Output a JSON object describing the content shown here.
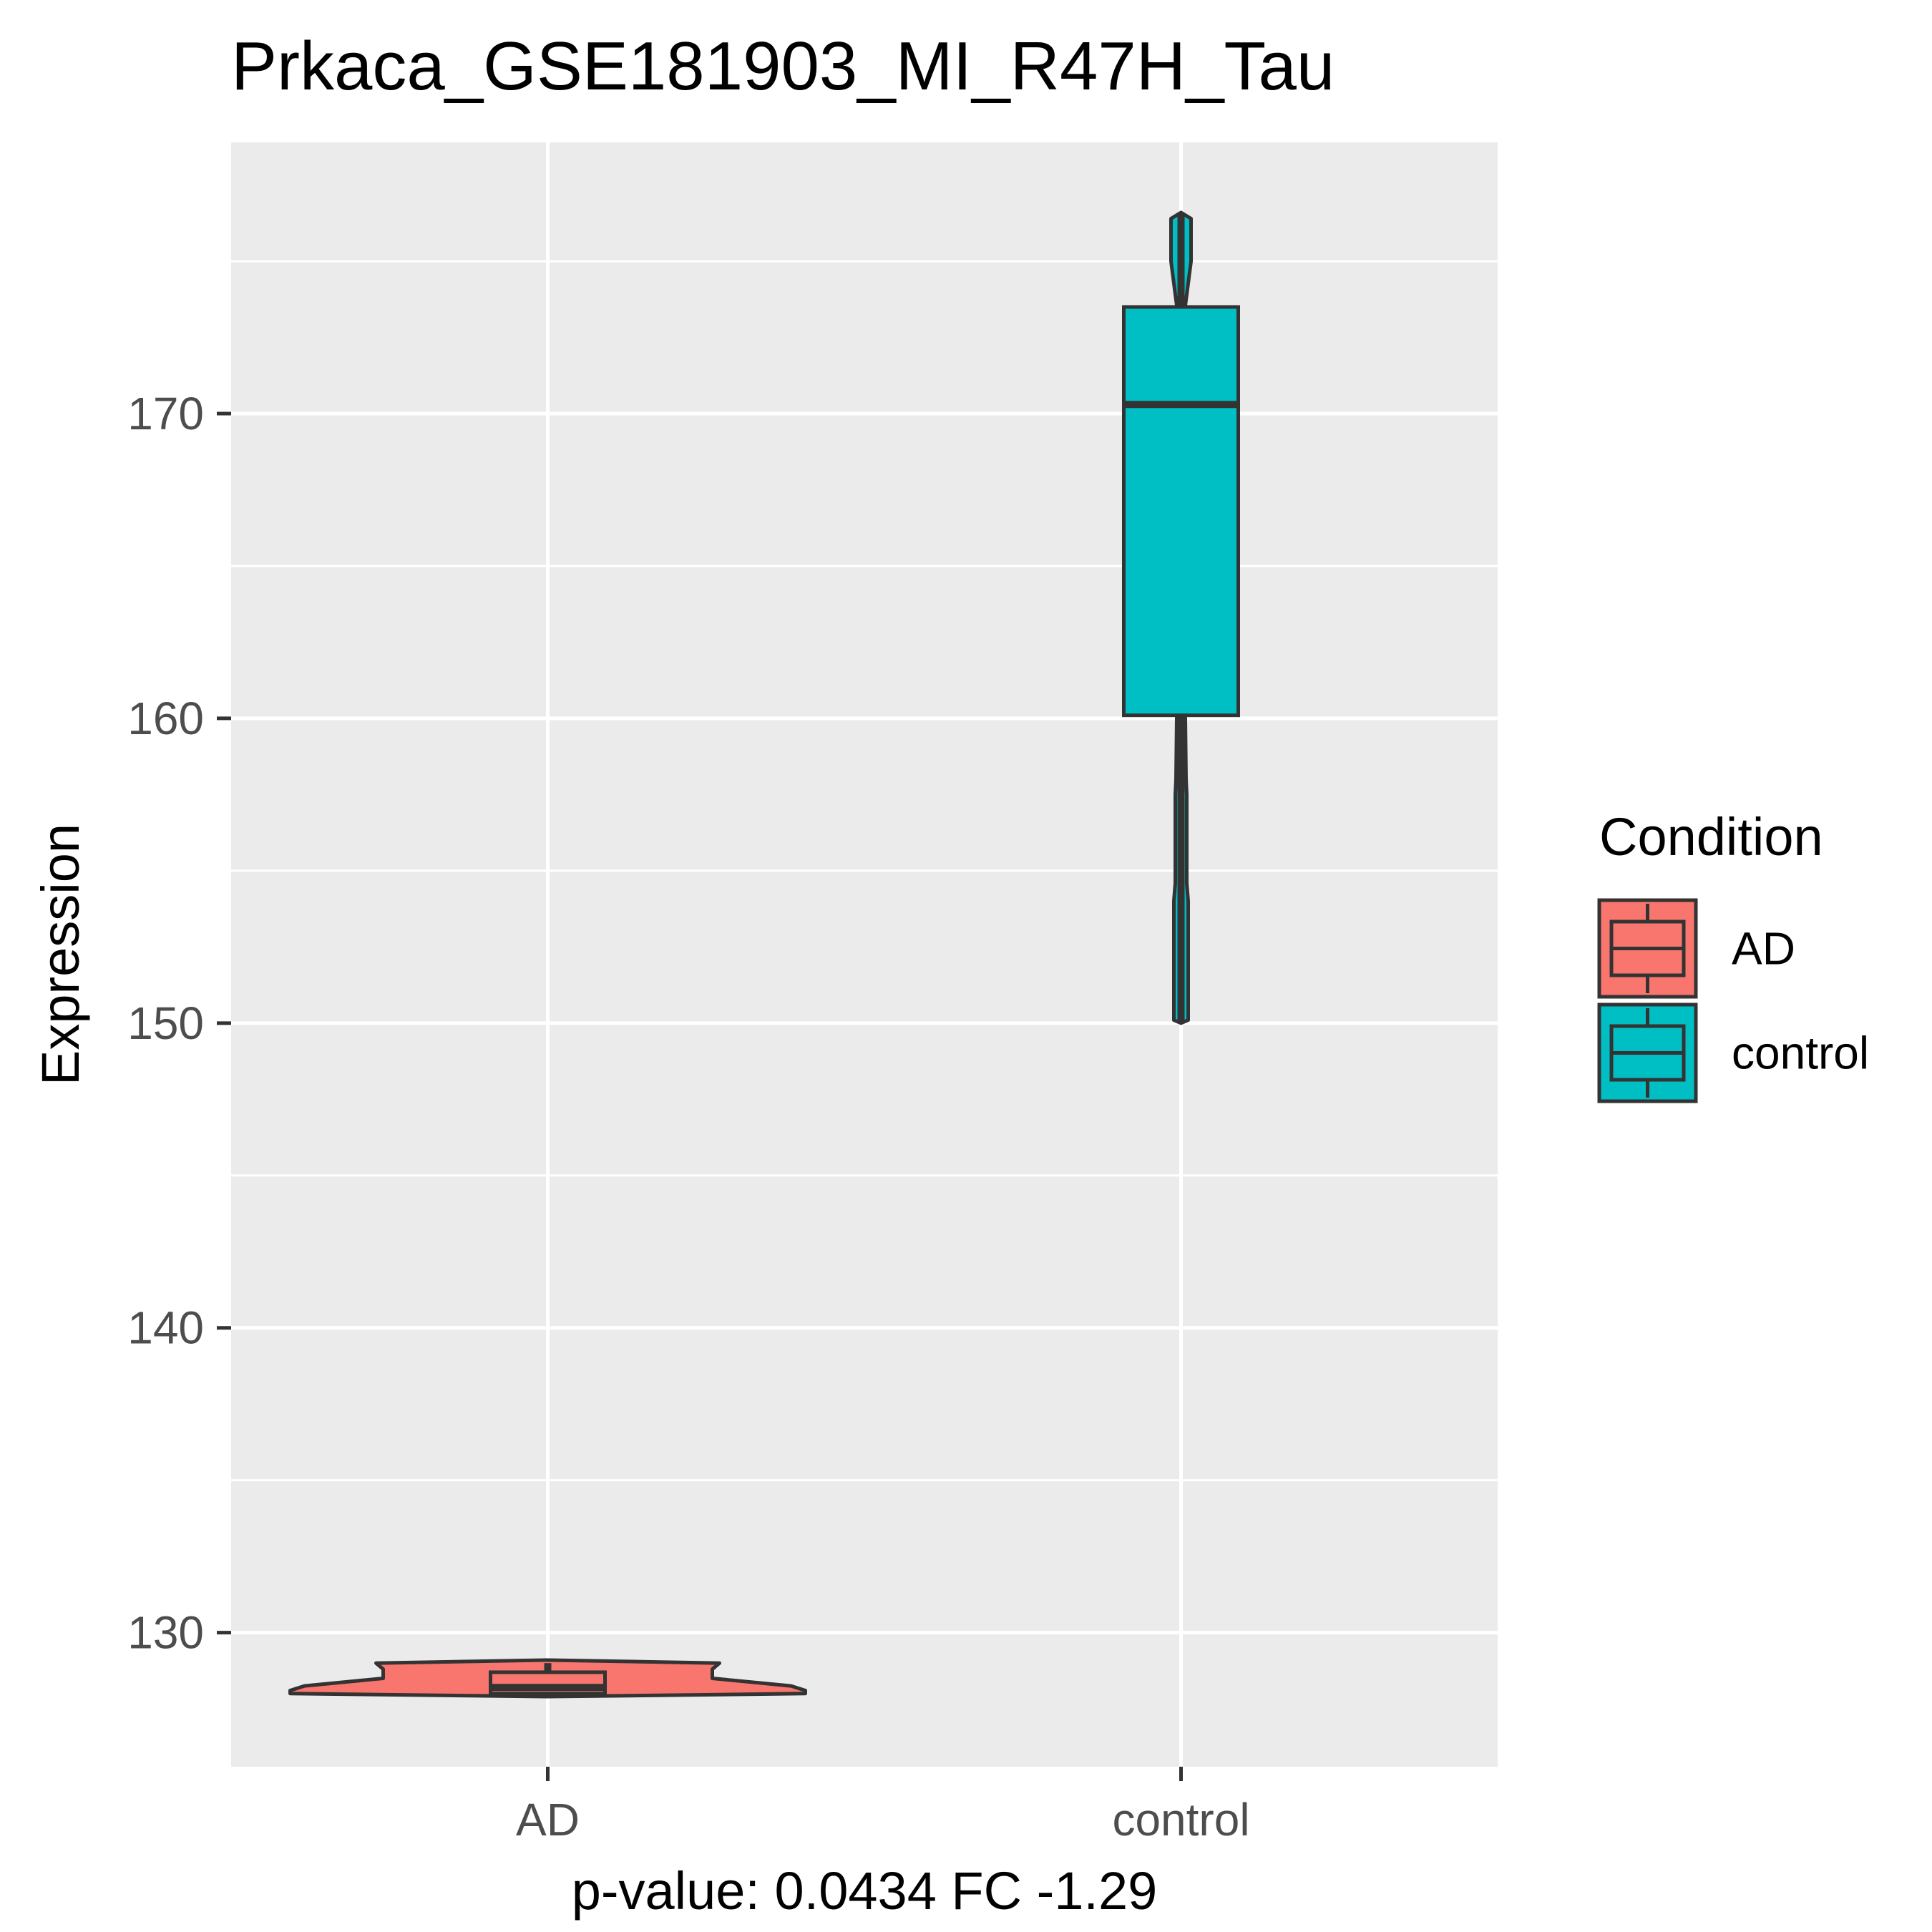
{
  "chart_data": {
    "type": "violin",
    "title": "Prkaca_GSE181903_MI_R47H_Tau",
    "xlabel": "p-value: 0.0434 FC -1.29",
    "ylabel": "Expression",
    "categories": [
      "AD",
      "control"
    ],
    "ylim": [
      125.6,
      178.9
    ],
    "yticks": [
      130,
      140,
      150,
      160,
      170
    ],
    "grid": true,
    "legend": {
      "title": "Condition",
      "placement": "right",
      "entries": [
        "AD",
        "control"
      ]
    },
    "series": [
      {
        "name": "AD",
        "color": "#F8766D",
        "box": {
          "min": 128.0,
          "q1": 128.0,
          "median": 128.2,
          "q3": 128.7,
          "max": 129.0
        },
        "violin_range": [
          127.9,
          129.1
        ]
      },
      {
        "name": "control",
        "color": "#00BFC4",
        "box": {
          "min": 150.0,
          "q1": 160.1,
          "median": 170.3,
          "q3": 173.5,
          "max": 176.6
        },
        "violin_range": [
          150.0,
          176.6
        ]
      }
    ]
  }
}
